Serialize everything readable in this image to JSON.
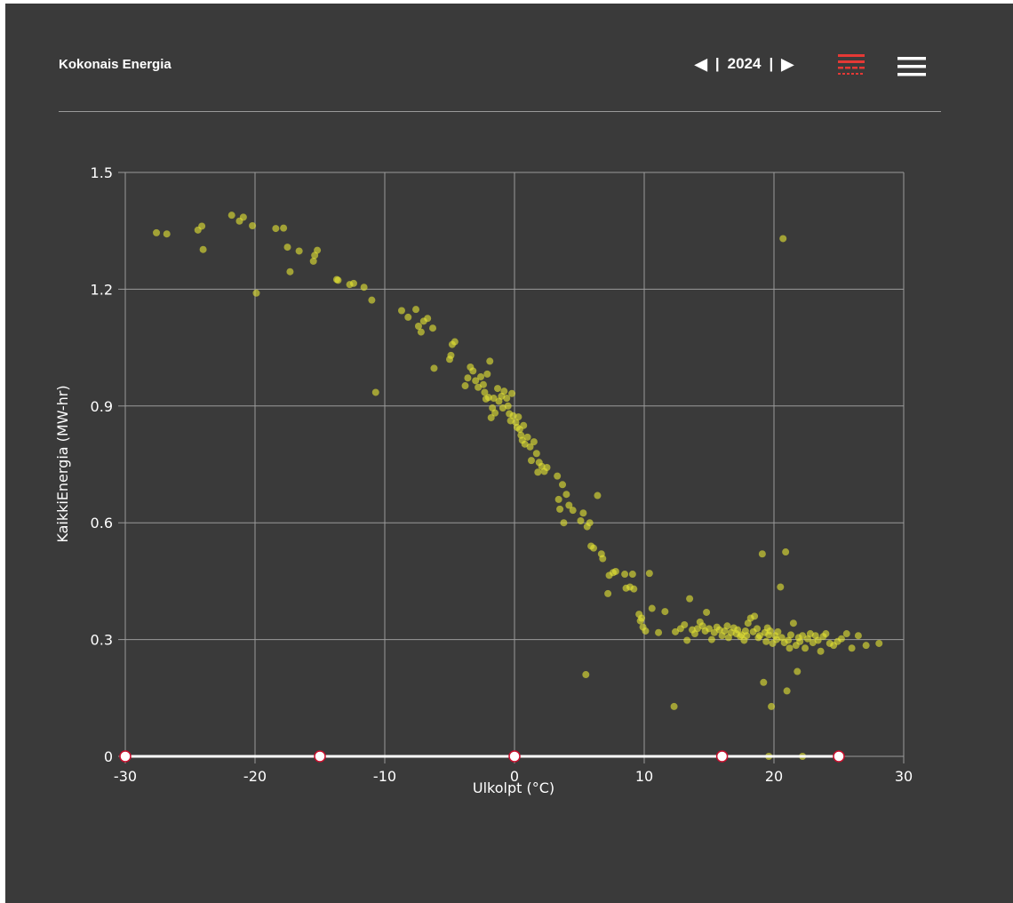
{
  "header": {
    "title": "Kokonais Energia",
    "prev_symbol": "◀",
    "separator": "|",
    "year": "2024",
    "next_symbol": "▶",
    "filter_icon": "filter-lines-icon",
    "menu_icon": "hamburger-menu-icon"
  },
  "colors": {
    "background": "#3a3a3a",
    "point": "#e2e234",
    "filter_icon": "#e53935",
    "grid": "#9a9a9a",
    "text": "#ffffff"
  },
  "chart_data": {
    "type": "scatter",
    "title": "",
    "xlabel": "Ulkolpt (°C)",
    "ylabel": "KaikkiEnergia (MW-hr)",
    "xlim": [
      -30,
      30
    ],
    "ylim": [
      0,
      1.5
    ],
    "xticks": [
      "-30",
      "-20",
      "-10",
      "0",
      "10",
      "20",
      "30"
    ],
    "yticks": [
      "0",
      "0.3",
      "0.6",
      "0.9",
      "1.2",
      "1.5"
    ],
    "grid": true,
    "range_slider": {
      "handles": [
        -30,
        -15,
        0,
        16,
        25
      ]
    },
    "series": [
      {
        "points": [
          [
            -27.6,
            1.345
          ],
          [
            -26.8,
            1.342
          ],
          [
            -24.4,
            1.352
          ],
          [
            -24.1,
            1.362
          ],
          [
            -24.0,
            1.302
          ],
          [
            -21.8,
            1.39
          ],
          [
            -21.2,
            1.375
          ],
          [
            -20.9,
            1.385
          ],
          [
            -20.2,
            1.363
          ],
          [
            -19.9,
            1.19
          ],
          [
            -18.4,
            1.356
          ],
          [
            -17.8,
            1.357
          ],
          [
            -17.5,
            1.308
          ],
          [
            -17.3,
            1.245
          ],
          [
            -16.6,
            1.298
          ],
          [
            -15.5,
            1.272
          ],
          [
            -15.4,
            1.287
          ],
          [
            -15.2,
            1.3
          ],
          [
            -13.7,
            1.225
          ],
          [
            -13.6,
            1.223
          ],
          [
            -12.7,
            1.212
          ],
          [
            -12.4,
            1.215
          ],
          [
            -11.6,
            1.205
          ],
          [
            -11.0,
            1.172
          ],
          [
            -10.7,
            0.935
          ],
          [
            -8.7,
            1.145
          ],
          [
            -8.2,
            1.128
          ],
          [
            -7.6,
            1.148
          ],
          [
            -7.4,
            1.105
          ],
          [
            -7.2,
            1.09
          ],
          [
            -7.0,
            1.118
          ],
          [
            -6.7,
            1.125
          ],
          [
            -6.3,
            1.1
          ],
          [
            -6.2,
            0.997
          ],
          [
            -5.0,
            1.02
          ],
          [
            -4.9,
            1.03
          ],
          [
            -4.8,
            1.058
          ],
          [
            -4.6,
            1.065
          ],
          [
            -3.8,
            0.952
          ],
          [
            -3.6,
            0.972
          ],
          [
            -3.4,
            1.0
          ],
          [
            -3.2,
            0.99
          ],
          [
            -3.0,
            0.965
          ],
          [
            -2.8,
            0.948
          ],
          [
            -2.6,
            0.975
          ],
          [
            -2.4,
            0.955
          ],
          [
            -2.3,
            0.935
          ],
          [
            -2.2,
            0.918
          ],
          [
            -2.1,
            0.982
          ],
          [
            -2.0,
            0.922
          ],
          [
            -1.9,
            1.015
          ],
          [
            -1.8,
            0.87
          ],
          [
            -1.7,
            0.895
          ],
          [
            -1.6,
            0.92
          ],
          [
            -1.5,
            0.882
          ],
          [
            -1.3,
            0.945
          ],
          [
            -1.2,
            0.912
          ],
          [
            -1.0,
            0.925
          ],
          [
            -0.9,
            0.895
          ],
          [
            -0.8,
            0.938
          ],
          [
            -0.6,
            0.92
          ],
          [
            -0.5,
            0.9
          ],
          [
            -0.4,
            0.88
          ],
          [
            -0.3,
            0.862
          ],
          [
            -0.2,
            0.932
          ],
          [
            -0.1,
            0.875
          ],
          [
            0.1,
            0.858
          ],
          [
            0.2,
            0.845
          ],
          [
            0.3,
            0.872
          ],
          [
            0.4,
            0.84
          ],
          [
            0.5,
            0.825
          ],
          [
            0.6,
            0.812
          ],
          [
            0.7,
            0.85
          ],
          [
            0.8,
            0.802
          ],
          [
            1.0,
            0.82
          ],
          [
            1.2,
            0.795
          ],
          [
            1.3,
            0.76
          ],
          [
            1.5,
            0.808
          ],
          [
            1.7,
            0.778
          ],
          [
            1.8,
            0.73
          ],
          [
            1.9,
            0.755
          ],
          [
            2.1,
            0.745
          ],
          [
            2.3,
            0.732
          ],
          [
            2.5,
            0.742
          ],
          [
            3.3,
            0.72
          ],
          [
            3.4,
            0.66
          ],
          [
            3.5,
            0.635
          ],
          [
            3.7,
            0.698
          ],
          [
            3.8,
            0.6
          ],
          [
            4.0,
            0.673
          ],
          [
            4.2,
            0.645
          ],
          [
            4.5,
            0.632
          ],
          [
            5.1,
            0.605
          ],
          [
            5.3,
            0.625
          ],
          [
            5.5,
            0.21
          ],
          [
            5.6,
            0.59
          ],
          [
            5.8,
            0.6
          ],
          [
            5.9,
            0.54
          ],
          [
            6.1,
            0.535
          ],
          [
            6.4,
            0.67
          ],
          [
            6.7,
            0.52
          ],
          [
            6.8,
            0.508
          ],
          [
            7.2,
            0.418
          ],
          [
            7.3,
            0.465
          ],
          [
            7.6,
            0.472
          ],
          [
            7.8,
            0.475
          ],
          [
            8.5,
            0.468
          ],
          [
            8.6,
            0.432
          ],
          [
            8.9,
            0.435
          ],
          [
            9.1,
            0.468
          ],
          [
            9.2,
            0.43
          ],
          [
            9.6,
            0.365
          ],
          [
            9.7,
            0.348
          ],
          [
            9.8,
            0.355
          ],
          [
            9.9,
            0.332
          ],
          [
            10.1,
            0.322
          ],
          [
            10.4,
            0.47
          ],
          [
            10.6,
            0.38
          ],
          [
            11.1,
            0.318
          ],
          [
            11.6,
            0.372
          ],
          [
            12.3,
            0.128
          ],
          [
            12.4,
            0.32
          ],
          [
            12.8,
            0.328
          ],
          [
            13.1,
            0.338
          ],
          [
            13.3,
            0.298
          ],
          [
            13.5,
            0.405
          ],
          [
            13.7,
            0.325
          ],
          [
            13.9,
            0.315
          ],
          [
            14.1,
            0.328
          ],
          [
            14.3,
            0.345
          ],
          [
            14.5,
            0.335
          ],
          [
            14.7,
            0.322
          ],
          [
            14.8,
            0.37
          ],
          [
            15.0,
            0.328
          ],
          [
            15.2,
            0.3
          ],
          [
            15.4,
            0.318
          ],
          [
            15.6,
            0.332
          ],
          [
            15.8,
            0.325
          ],
          [
            16.0,
            0.31
          ],
          [
            16.2,
            0.322
          ],
          [
            16.4,
            0.335
          ],
          [
            16.5,
            0.305
          ],
          [
            16.7,
            0.318
          ],
          [
            16.9,
            0.33
          ],
          [
            17.1,
            0.315
          ],
          [
            17.2,
            0.325
          ],
          [
            17.4,
            0.308
          ],
          [
            17.5,
            0.312
          ],
          [
            17.7,
            0.298
          ],
          [
            17.8,
            0.322
          ],
          [
            17.9,
            0.31
          ],
          [
            18.0,
            0.342
          ],
          [
            18.2,
            0.355
          ],
          [
            18.4,
            0.32
          ],
          [
            18.5,
            0.36
          ],
          [
            18.7,
            0.328
          ],
          [
            18.8,
            0.305
          ],
          [
            18.9,
            0.31
          ],
          [
            19.1,
            0.52
          ],
          [
            19.2,
            0.19
          ],
          [
            19.3,
            0.318
          ],
          [
            19.4,
            0.295
          ],
          [
            19.5,
            0.33
          ],
          [
            19.6,
            0.312
          ],
          [
            19.7,
            0.322
          ],
          [
            19.8,
            0.128
          ],
          [
            19.9,
            0.29
          ],
          [
            20.1,
            0.31
          ],
          [
            20.2,
            0.3
          ],
          [
            20.3,
            0.32
          ],
          [
            20.5,
            0.435
          ],
          [
            20.6,
            0.305
          ],
          [
            20.7,
            1.33
          ],
          [
            20.8,
            0.292
          ],
          [
            20.9,
            0.525
          ],
          [
            21.0,
            0.168
          ],
          [
            21.1,
            0.298
          ],
          [
            21.2,
            0.278
          ],
          [
            21.3,
            0.312
          ],
          [
            21.5,
            0.342
          ],
          [
            21.7,
            0.285
          ],
          [
            21.8,
            0.218
          ],
          [
            21.9,
            0.305
          ],
          [
            22.0,
            0.295
          ],
          [
            22.2,
            0.31
          ],
          [
            22.4,
            0.278
          ],
          [
            22.6,
            0.302
          ],
          [
            22.8,
            0.315
          ],
          [
            23.0,
            0.292
          ],
          [
            23.2,
            0.31
          ],
          [
            23.4,
            0.298
          ],
          [
            23.6,
            0.27
          ],
          [
            23.8,
            0.308
          ],
          [
            24.0,
            0.315
          ],
          [
            24.3,
            0.29
          ],
          [
            24.6,
            0.285
          ],
          [
            24.9,
            0.295
          ],
          [
            25.2,
            0.302
          ],
          [
            25.6,
            0.315
          ],
          [
            26.0,
            0.278
          ],
          [
            26.5,
            0.31
          ],
          [
            27.1,
            0.285
          ],
          [
            28.1,
            0.29
          ],
          [
            19.6,
            0.0
          ],
          [
            22.2,
            0.0
          ]
        ]
      }
    ]
  }
}
